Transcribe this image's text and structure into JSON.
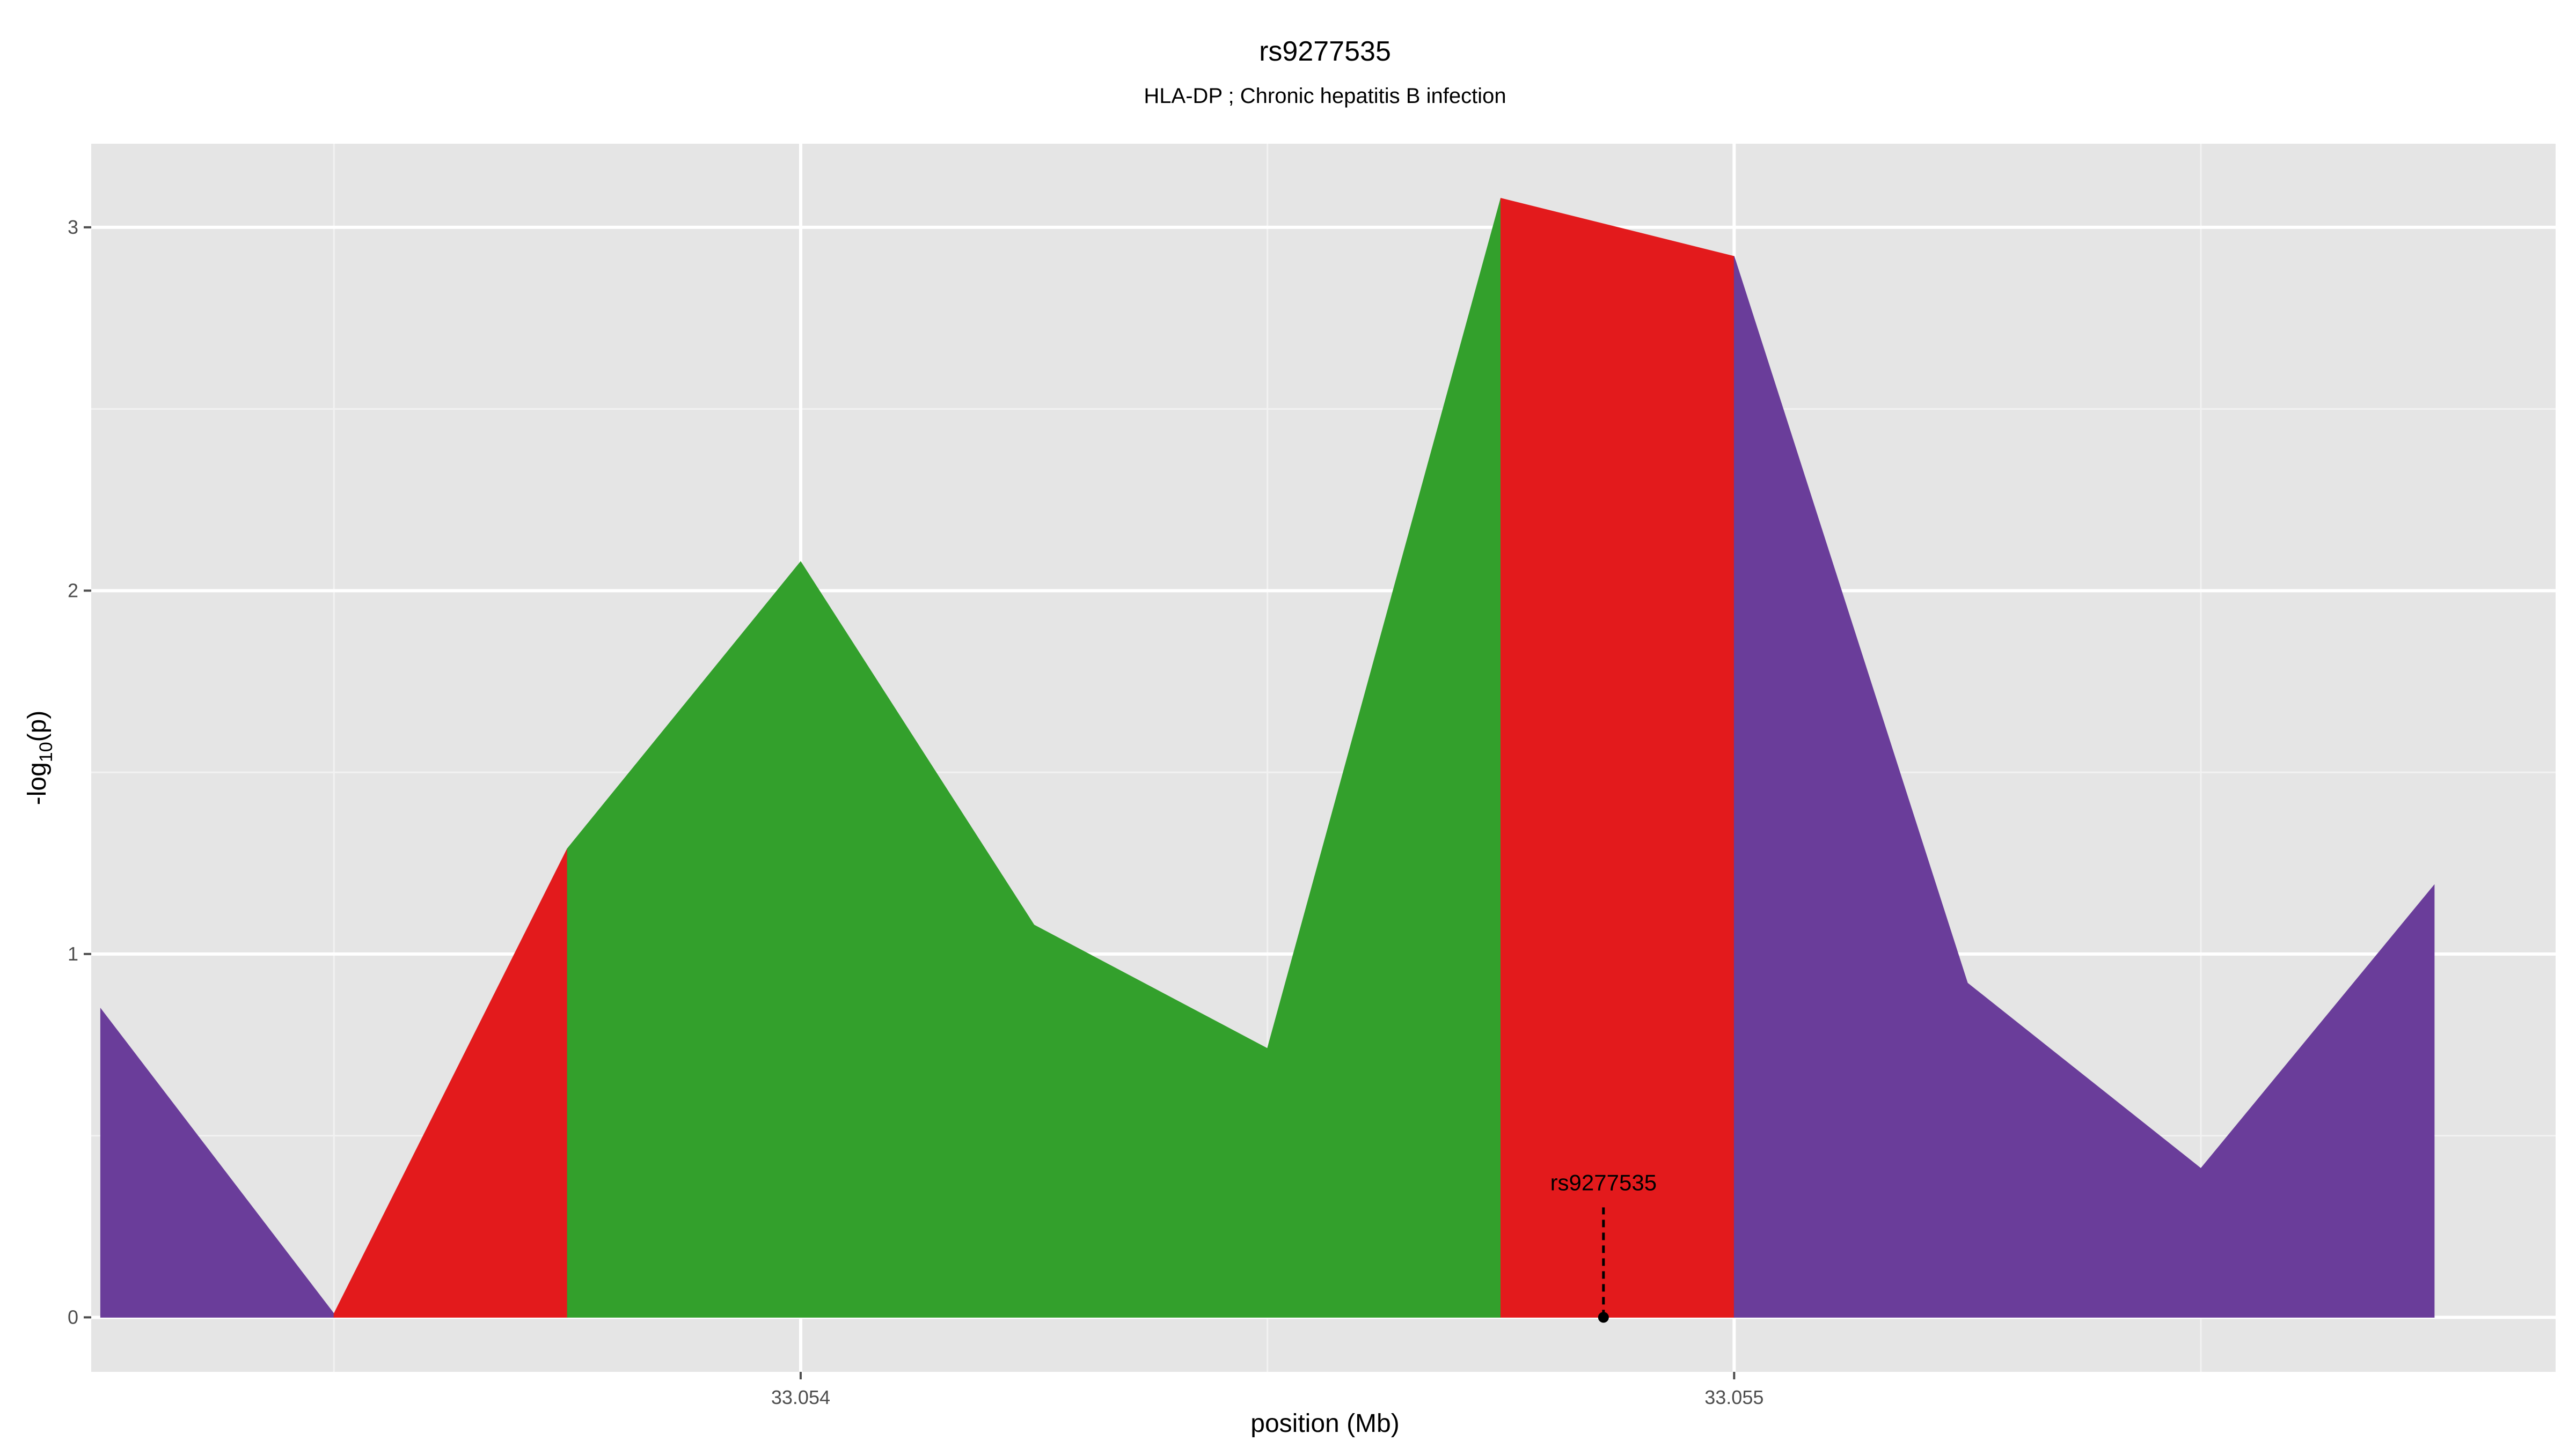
{
  "chart_data": {
    "type": "area",
    "title": "rs9277535",
    "subtitle": "HLA-DP ; Chronic hepatitis B infection",
    "xlabel": "position (Mb)",
    "ylabel": "-log10(p)",
    "xlim": [
      33.05324,
      33.05588
    ],
    "ylim": [
      -0.15,
      3.23
    ],
    "x_ticks": [
      33.054,
      33.055
    ],
    "x_tick_labels": [
      "33.054",
      "33.055"
    ],
    "x_minor_gridlines": [
      33.0535,
      33.0545,
      33.0555
    ],
    "y_ticks": [
      0,
      1,
      2,
      3
    ],
    "y_tick_labels": [
      "0",
      "1",
      "2",
      "3"
    ],
    "grid": true,
    "panel_background": "#e5e5e5",
    "points": [
      {
        "x": 33.05325,
        "y": 0.85
      },
      {
        "x": 33.0535,
        "y": 0.01
      },
      {
        "x": 33.05375,
        "y": 1.29
      },
      {
        "x": 33.054,
        "y": 2.08
      },
      {
        "x": 33.05425,
        "y": 1.08
      },
      {
        "x": 33.0545,
        "y": 0.74
      },
      {
        "x": 33.05475,
        "y": 3.08
      },
      {
        "x": 33.055,
        "y": 2.92
      },
      {
        "x": 33.05525,
        "y": 0.92
      },
      {
        "x": 33.0555,
        "y": 0.41
      },
      {
        "x": 33.05575,
        "y": 1.19
      }
    ],
    "segments": [
      {
        "from": 0,
        "to": 1,
        "color": "#6a3d9a"
      },
      {
        "from": 1,
        "to": 2,
        "color": "#e31a1c"
      },
      {
        "from": 2,
        "to": 6,
        "color": "#33a02c"
      },
      {
        "from": 6,
        "to": 7,
        "color": "#e31a1c"
      },
      {
        "from": 7,
        "to": 10,
        "color": "#6a3d9a"
      }
    ],
    "annotation": {
      "label": "rs9277535",
      "x": 33.05486,
      "y": 0
    }
  }
}
